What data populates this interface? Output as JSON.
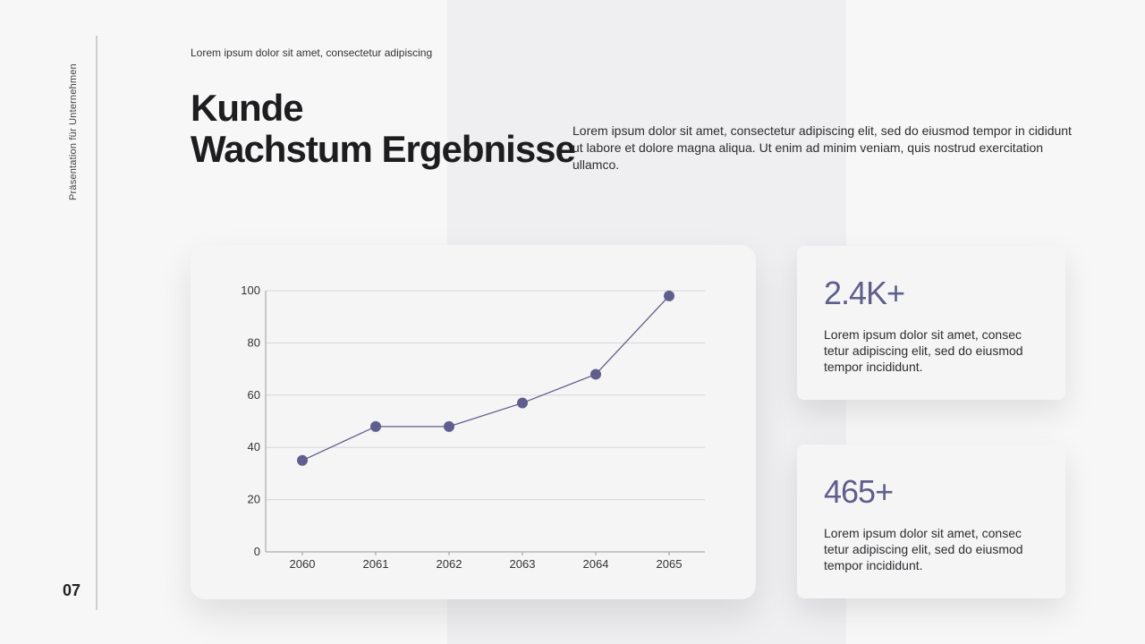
{
  "sidebar": {
    "vertical_label": "Präsentation für Unternehmen",
    "page_number": "07"
  },
  "header": {
    "eyebrow": "Lorem ipsum dolor sit amet, consectetur adipiscing",
    "title_line1": "Kunde",
    "title_line2": "Wachstum Ergebnisse",
    "intro": "Lorem ipsum dolor sit amet, consectetur adipiscing elit, sed do eiusmod tempor in cididunt ut labore et dolore magna aliqua. Ut enim ad minim veniam, quis nostrud exercitation ullamco."
  },
  "stats": [
    {
      "value": "2.4K+",
      "text": "Lorem ipsum dolor sit amet, consec tetur adipiscing elit, sed do eiusmod tempor incididunt."
    },
    {
      "value": "465+",
      "text": "Lorem ipsum dolor sit amet, consec tetur adipiscing elit, sed do eiusmod tempor incididunt."
    }
  ],
  "colors": {
    "accent": "#5f5e8c",
    "grid": "#d6d6dc",
    "axis": "#9a9aa0"
  },
  "chart_data": {
    "type": "line",
    "x": [
      "2060",
      "2061",
      "2062",
      "2063",
      "2064",
      "2065"
    ],
    "series": [
      {
        "values": [
          35,
          48,
          48,
          57,
          68,
          98
        ]
      }
    ],
    "ylim": [
      0,
      100
    ],
    "yticks": [
      0,
      20,
      40,
      60,
      80,
      100
    ],
    "grid": true,
    "title": "",
    "xlabel": "",
    "ylabel": ""
  }
}
